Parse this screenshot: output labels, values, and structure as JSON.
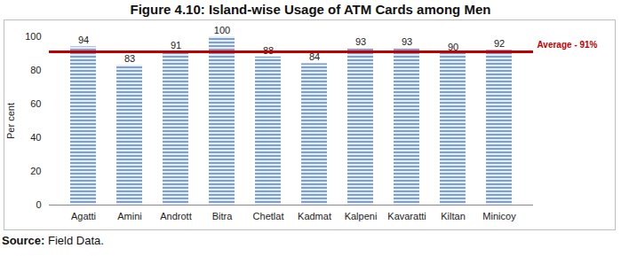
{
  "chart_data": {
    "type": "bar",
    "title": "Figure 4.10: Island-wise Usage of ATM Cards among Men",
    "categories": [
      "Agatti",
      "Amini",
      "Andrott",
      "Bitra",
      "Chetlat",
      "Kadmat",
      "Kalpeni",
      "Kavaratti",
      "Kiltan",
      "Minicoy"
    ],
    "values": [
      94,
      83,
      91,
      100,
      88,
      84,
      93,
      93,
      90,
      92
    ],
    "color": "#7b9fd6",
    "y_label": "Per cent",
    "ylim": [
      0,
      100
    ],
    "yticks": [
      0,
      20,
      40,
      60,
      80,
      100
    ],
    "grid": false,
    "data_labels": true,
    "annotations": [
      {
        "type": "hline",
        "y": 91,
        "label": "Average - 91%",
        "color": "#c00000"
      }
    ],
    "source_label": "Source:",
    "source": "Field Data."
  }
}
